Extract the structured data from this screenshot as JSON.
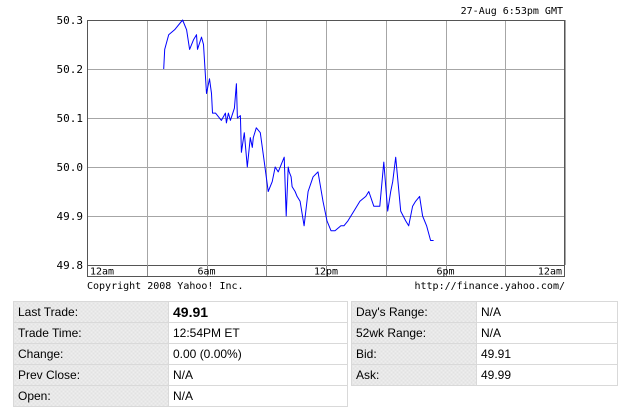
{
  "timestamp": "27-Aug 6:53pm GMT",
  "copyright": "Copyright 2008 Yahoo! Inc.",
  "source_url": "http://finance.yahoo.com/",
  "chart_data": {
    "type": "line",
    "title": "",
    "xlabel": "",
    "ylabel": "",
    "x_ticks": [
      {
        "hour": 0,
        "label": "12am"
      },
      {
        "hour": 6,
        "label": "6am"
      },
      {
        "hour": 12,
        "label": "12pm"
      },
      {
        "hour": 18,
        "label": "6pm"
      },
      {
        "hour": 24,
        "label": "12am"
      }
    ],
    "y_ticks": [
      {
        "value": 49.8,
        "label": "49.8"
      },
      {
        "value": 49.9,
        "label": "49.9"
      },
      {
        "value": 50.0,
        "label": "50.0"
      },
      {
        "value": 50.1,
        "label": "50.1"
      },
      {
        "value": 50.2,
        "label": "50.2"
      },
      {
        "value": 50.3,
        "label": "50.3"
      }
    ],
    "xlim": [
      0,
      24
    ],
    "ylim": [
      49.8,
      50.3
    ],
    "grid": true,
    "line_color": "#0000ff",
    "series": [
      {
        "x_hours": [
          3.85,
          3.9,
          4.1,
          4.4,
          4.8,
          5.0,
          5.15,
          5.35,
          5.5,
          5.55,
          5.75,
          5.85,
          6.0,
          6.15,
          6.25,
          6.3,
          6.45,
          6.55,
          6.75,
          6.95,
          7.0,
          7.1,
          7.2,
          7.4,
          7.5,
          7.55,
          7.7,
          7.75,
          7.9,
          8.05,
          8.2,
          8.3,
          8.35,
          8.5,
          8.7,
          8.9,
          9.1,
          9.3,
          9.45,
          9.6,
          9.9,
          10.0,
          10.1,
          10.15,
          10.25,
          10.3,
          10.45,
          10.55,
          10.7,
          10.9,
          11.1,
          11.35,
          11.6,
          11.85,
          12.05,
          12.25,
          12.45,
          12.75,
          12.9,
          13.1,
          13.4,
          13.7,
          14.0,
          14.15,
          14.4,
          14.7,
          14.9,
          15.1,
          15.25,
          15.35,
          15.5,
          15.75,
          16.0,
          16.15,
          16.35,
          16.5,
          16.7,
          16.85,
          17.05,
          17.25,
          17.4
        ],
        "y": [
          50.2,
          50.24,
          50.27,
          50.28,
          50.3,
          50.28,
          50.24,
          50.26,
          50.27,
          50.24,
          50.265,
          50.25,
          50.15,
          50.18,
          50.15,
          50.11,
          50.11,
          50.105,
          50.095,
          50.11,
          50.09,
          50.11,
          50.095,
          50.12,
          50.17,
          50.1,
          50.105,
          50.03,
          50.07,
          50.0,
          50.06,
          50.04,
          50.06,
          50.08,
          50.07,
          50.01,
          49.95,
          49.97,
          50.0,
          49.99,
          50.02,
          49.9,
          50.0,
          49.99,
          49.98,
          49.96,
          49.95,
          49.94,
          49.93,
          49.88,
          49.95,
          49.98,
          49.99,
          49.93,
          49.89,
          49.87,
          49.87,
          49.88,
          49.88,
          49.89,
          49.91,
          49.93,
          49.94,
          49.95,
          49.92,
          49.92,
          50.01,
          49.91,
          49.95,
          49.97,
          50.02,
          49.91,
          49.89,
          49.88,
          49.92,
          49.93,
          49.94,
          49.9,
          49.88,
          49.85,
          49.85
        ]
      }
    ]
  },
  "quote": {
    "left": [
      {
        "label": "Last Trade:",
        "value": "49.91"
      },
      {
        "label": "Trade Time:",
        "value": "12:54PM ET"
      },
      {
        "label": "Change:",
        "value": "0.00 (0.00%)"
      },
      {
        "label": "Prev Close:",
        "value": "N/A"
      },
      {
        "label": "Open:",
        "value": "N/A"
      }
    ],
    "right": [
      {
        "label": "Day's Range:",
        "value": "N/A"
      },
      {
        "label": "52wk Range:",
        "value": "N/A"
      },
      {
        "label": "Bid:",
        "value": "49.91"
      },
      {
        "label": "Ask:",
        "value": "49.99"
      }
    ]
  }
}
